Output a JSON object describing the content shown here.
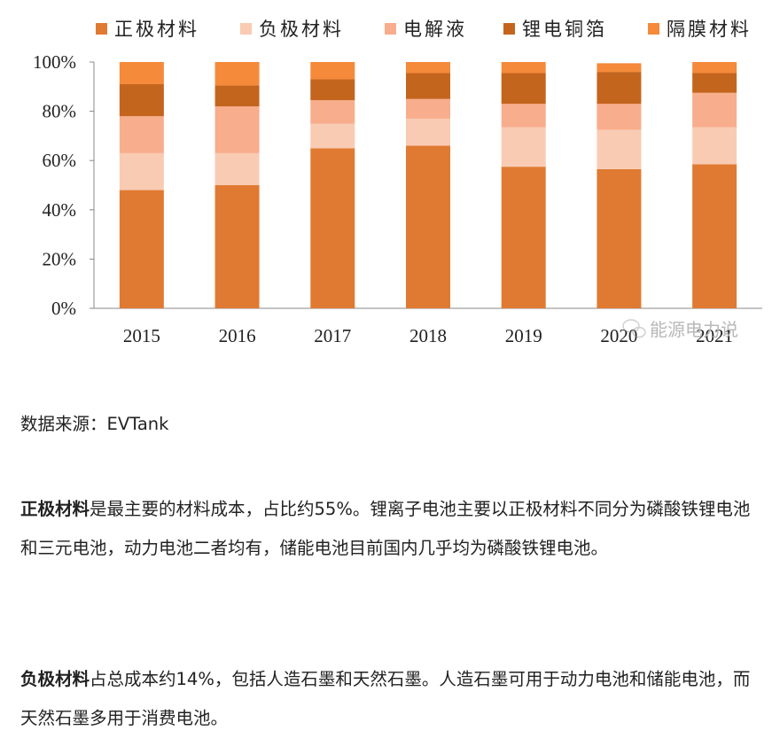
{
  "chart_data": {
    "type": "bar",
    "stacked": true,
    "categories": [
      "2015",
      "2016",
      "2017",
      "2018",
      "2019",
      "2020",
      "2021"
    ],
    "series": [
      {
        "name": "正极材料",
        "color": "#e07a32",
        "values": [
          48,
          50,
          65,
          66,
          57.5,
          56.5,
          58.5
        ]
      },
      {
        "name": "负极材料",
        "color": "#f9cbb3",
        "values": [
          15,
          13,
          10,
          11,
          16,
          16,
          15
        ]
      },
      {
        "name": "电解液",
        "color": "#f8ad8c",
        "values": [
          15,
          19,
          9.5,
          8,
          9.5,
          10.5,
          14
        ]
      },
      {
        "name": "锂电铜箔",
        "color": "#c4651e",
        "values": [
          13,
          8.5,
          8.5,
          10.5,
          12.5,
          13,
          8
        ]
      },
      {
        "name": "隔膜材料",
        "color": "#f58a3a",
        "values": [
          9,
          9.5,
          7,
          4.5,
          4.5,
          3.5,
          4.5
        ]
      }
    ],
    "ylim": [
      0,
      100
    ],
    "yticks": [
      "0%",
      "20%",
      "40%",
      "60%",
      "80%",
      "100%"
    ],
    "legend_position": "top",
    "grid": false
  },
  "watermark": {
    "icon": "wechat-icon",
    "text": "能源电力说"
  },
  "source": "数据来源：EVTank",
  "paragraphs": [
    {
      "bold": "正极材料",
      "text": "是最主要的材料成本，占比约55%。锂离子电池主要以正极材料不同分为磷酸铁锂电池和三元电池，动力电池二者均有，储能电池目前国内几乎均为磷酸铁锂电池。"
    },
    {
      "bold": "负极材料",
      "text": "占总成本约14%，包括人造石墨和天然石墨。人造石墨可用于动力电池和储能电池，而天然石墨多用于消费电池。"
    }
  ]
}
